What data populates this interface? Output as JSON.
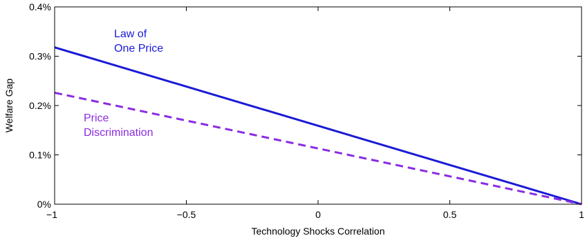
{
  "chart_data": {
    "type": "line",
    "xlabel": "Technology Shocks Correlation",
    "ylabel": "Welfare Gap",
    "xlim": [
      -1,
      1
    ],
    "ylim": [
      0,
      0.4
    ],
    "grid": false,
    "x_ticks": [
      -1,
      -0.5,
      0,
      0.5,
      1
    ],
    "x_tick_labels": [
      "−1",
      "−0.5",
      "0",
      "0.5",
      "1"
    ],
    "y_ticks": [
      0,
      0.1,
      0.2,
      0.3,
      0.4
    ],
    "y_tick_labels": [
      "0%",
      "0.1%",
      "0.2%",
      "0.3%",
      "0.4%"
    ],
    "series": [
      {
        "name": "Law of One Price",
        "label_lines": [
          "Law of",
          "One Price"
        ],
        "style": "solid",
        "color": "#1a1ad6",
        "x": [
          -1,
          1
        ],
        "y": [
          0.318,
          0.0
        ]
      },
      {
        "name": "Price Discrimination",
        "label_lines": [
          "Price",
          "Discrimination"
        ],
        "style": "dashed",
        "color": "#8a2be2",
        "x": [
          -1,
          1
        ],
        "y": [
          0.226,
          0.0
        ]
      }
    ]
  }
}
